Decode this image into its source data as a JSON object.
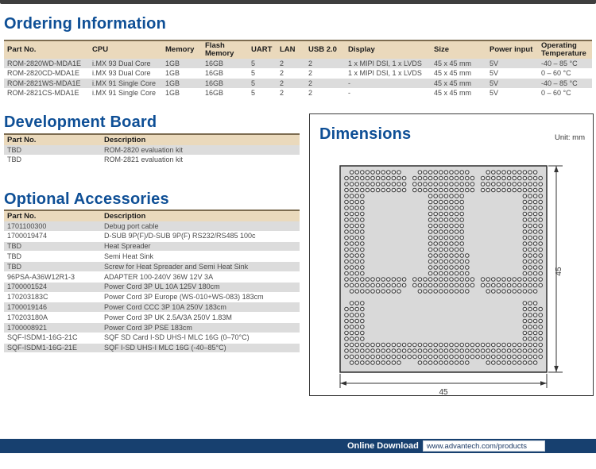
{
  "headings": {
    "ordering": "Ordering Information",
    "development": "Development Board",
    "accessories": "Optional Accessories"
  },
  "ordering_table": {
    "headers": [
      "Part No.",
      "CPU",
      "Memory",
      "Flash Memory",
      "UART",
      "LAN",
      "USB 2.0",
      "Display",
      "Size",
      "Power input",
      "Operating Temperature"
    ],
    "rows": [
      [
        "ROM-2820WD-MDA1E",
        "i.MX 93 Dual Core",
        "1GB",
        "16GB",
        "5",
        "2",
        "2",
        "1 x MIPI DSI, 1 x LVDS",
        "45 x 45 mm",
        "5V",
        "-40 – 85 °C"
      ],
      [
        "ROM-2820CD-MDA1E",
        "i.MX 93 Dual Core",
        "1GB",
        "16GB",
        "5",
        "2",
        "2",
        "1 x MIPI DSI, 1 x LVDS",
        "45 x 45 mm",
        "5V",
        "0 – 60 °C"
      ],
      [
        "ROM-2821WS-MDA1E",
        "i.MX 91 Single Core",
        "1GB",
        "16GB",
        "5",
        "2",
        "2",
        "-",
        "45 x 45 mm",
        "5V",
        "-40 – 85 °C"
      ],
      [
        "ROM-2821CS-MDA1E",
        "i.MX 91 Single Core",
        "1GB",
        "16GB",
        "5",
        "2",
        "2",
        "-",
        "45 x 45 mm",
        "5V",
        "0 – 60 °C"
      ]
    ]
  },
  "development_table": {
    "headers": [
      "Part No.",
      "Description"
    ],
    "rows": [
      [
        "TBD",
        "ROM-2820 evaluation kit"
      ],
      [
        "TBD",
        "ROM-2821 evaluation kit"
      ]
    ]
  },
  "accessories_table": {
    "headers": [
      "Part No.",
      "Description"
    ],
    "rows": [
      [
        "1701100300",
        "Debug port cable"
      ],
      [
        "1700019474",
        "D-SUB 9P(F)/D-SUB 9P(F) RS232/RS485 100c"
      ],
      [
        "TBD",
        "Heat Spreader"
      ],
      [
        "TBD",
        "Semi Heat Sink"
      ],
      [
        "TBD",
        "Screw for Heat Spreader and Semi Heat Sink"
      ],
      [
        "96PSA-A36W12R1-3",
        "ADAPTER 100-240V 36W 12V 3A"
      ],
      [
        "1700001524",
        "Power Cord 3P UL 10A 125V 180cm"
      ],
      [
        "170203183C",
        "Power Cord 3P Europe (WS-010+WS-083) 183cm"
      ],
      [
        "1700019146",
        "Power Cord CCC 3P 10A 250V 183cm"
      ],
      [
        "170203180A",
        "Power Cord 3P UK 2.5A/3A 250V 1.83M"
      ],
      [
        "1700008921",
        "Power Cord 3P PSE 183cm"
      ],
      [
        "SQF-ISDM1-16G-21C",
        "SQF SD Card I-SD UHS-I MLC 16G (0–70°C)"
      ],
      [
        "SQF-ISDM1-16G-21E",
        "SQF I-SD UHS-I MLC 16G (-40–85°C)"
      ]
    ]
  },
  "dimensions": {
    "title": "Dimensions",
    "unit": "Unit: mm",
    "width_label": "45",
    "height_label": "45",
    "board_color": "#d9d9d9",
    "bga": {
      "cols": 38,
      "range_sets": {
        "tens": [
          [
            1,
            10
          ],
          [
            14,
            23
          ],
          [
            27,
            36
          ]
        ],
        "twelves": [
          [
            0,
            11
          ],
          [
            13,
            24
          ],
          [
            26,
            37
          ]
        ],
        "mid": [
          [
            0,
            3
          ],
          [
            16,
            22
          ],
          [
            34,
            37
          ]
        ],
        "mid8": [
          [
            0,
            3
          ],
          [
            16,
            23
          ],
          [
            34,
            37
          ]
        ],
        "sides3": [
          [
            1,
            3
          ],
          [
            34,
            36
          ]
        ],
        "sides4": [
          [
            0,
            3
          ],
          [
            34,
            37
          ]
        ],
        "full": [
          [
            0,
            37
          ]
        ],
        "gap": []
      },
      "pattern_rows": [
        "tens",
        "twelves",
        "twelves",
        "twelves",
        "mid",
        "mid",
        "mid",
        "mid",
        "mid",
        "mid",
        "mid",
        "mid",
        "mid",
        "mid",
        "mid8",
        "mid8",
        "mid8",
        "mid8",
        "twelves",
        "twelves",
        "tens",
        "gap",
        "sides3",
        "sides4",
        "sides4",
        "sides4",
        "sides4",
        "sides4",
        "sides4",
        "full",
        "full",
        "full",
        "tens"
      ]
    }
  },
  "footer": {
    "download_label": "Online Download",
    "url": "www.advantech.com/products"
  },
  "colors": {
    "heading_blue": "#0e4f96",
    "table_header_tan": "#ead9bc",
    "stripe_gray": "#dcdcdc",
    "footer_navy": "#17406f"
  }
}
